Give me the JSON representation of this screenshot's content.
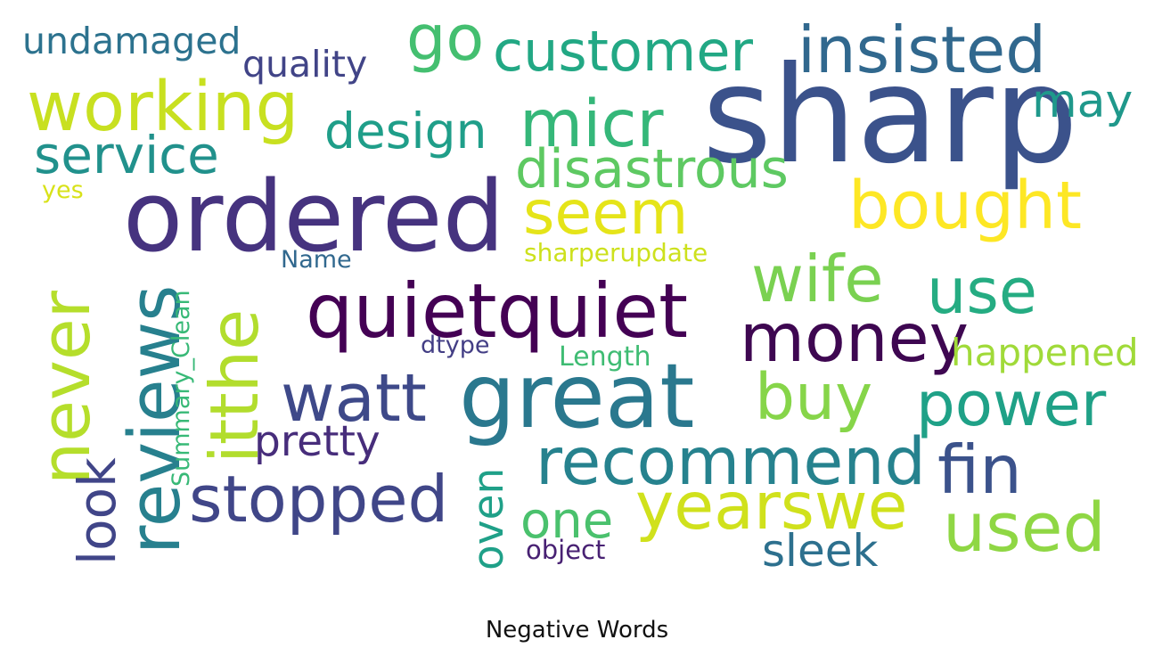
{
  "title": "Negative Words",
  "words": [
    {
      "text": "sharp",
      "color": "#3b528b",
      "orientation": "horizontal"
    },
    {
      "text": "ordered",
      "color": "#46337f",
      "orientation": "horizontal"
    },
    {
      "text": "great",
      "color": "#2a788e",
      "orientation": "horizontal"
    },
    {
      "text": "quietquiet",
      "color": "#440154",
      "orientation": "horizontal"
    },
    {
      "text": "working",
      "color": "#c8e020",
      "orientation": "horizontal"
    },
    {
      "text": "insisted",
      "color": "#31688e",
      "orientation": "horizontal"
    },
    {
      "text": "customer",
      "color": "#22a884",
      "orientation": "horizontal"
    },
    {
      "text": "micr",
      "color": "#35b779",
      "orientation": "horizontal"
    },
    {
      "text": "go",
      "color": "#44bf70",
      "orientation": "horizontal"
    },
    {
      "text": "bought",
      "color": "#fde725",
      "orientation": "horizontal"
    },
    {
      "text": "seem",
      "color": "#e5e419",
      "orientation": "horizontal"
    },
    {
      "text": "disastrous",
      "color": "#5ec962",
      "orientation": "horizontal"
    },
    {
      "text": "design",
      "color": "#1f9e89",
      "orientation": "horizontal"
    },
    {
      "text": "service",
      "color": "#21918c",
      "orientation": "horizontal"
    },
    {
      "text": "undamaged",
      "color": "#2c728e",
      "orientation": "horizontal"
    },
    {
      "text": "quality",
      "color": "#414487",
      "orientation": "horizontal"
    },
    {
      "text": "may",
      "color": "#1f988b",
      "orientation": "horizontal"
    },
    {
      "text": "yes",
      "color": "#d8e219",
      "orientation": "horizontal"
    },
    {
      "text": "money",
      "color": "#3e0751",
      "orientation": "horizontal"
    },
    {
      "text": "wife",
      "color": "#7ad151",
      "orientation": "horizontal"
    },
    {
      "text": "use",
      "color": "#25ac82",
      "orientation": "horizontal"
    },
    {
      "text": "happened",
      "color": "#a0da39",
      "orientation": "horizontal"
    },
    {
      "text": "power",
      "color": "#1fa187",
      "orientation": "horizontal"
    },
    {
      "text": "fin",
      "color": "#3b528b",
      "orientation": "horizontal"
    },
    {
      "text": "buy",
      "color": "#86d549",
      "orientation": "horizontal"
    },
    {
      "text": "recommend",
      "color": "#26828e",
      "orientation": "horizontal"
    },
    {
      "text": "yearswe",
      "color": "#d0e11c",
      "orientation": "horizontal"
    },
    {
      "text": "used",
      "color": "#8fd744",
      "orientation": "horizontal"
    },
    {
      "text": "sleek",
      "color": "#2d708e",
      "orientation": "horizontal"
    },
    {
      "text": "one",
      "color": "#4ac16d",
      "orientation": "horizontal"
    },
    {
      "text": "object",
      "color": "#482173",
      "orientation": "horizontal"
    },
    {
      "text": "watt",
      "color": "#3e4989",
      "orientation": "horizontal"
    },
    {
      "text": "stopped",
      "color": "#404688",
      "orientation": "horizontal"
    },
    {
      "text": "pretty",
      "color": "#472d7b",
      "orientation": "horizontal"
    },
    {
      "text": "Name",
      "color": "#31688e",
      "orientation": "horizontal"
    },
    {
      "text": "sharperupdate",
      "color": "#cde11d",
      "orientation": "horizontal"
    },
    {
      "text": "dtype",
      "color": "#433e85",
      "orientation": "horizontal"
    },
    {
      "text": "Length",
      "color": "#3fbc73",
      "orientation": "horizontal"
    },
    {
      "text": "never",
      "color": "#b5de2b",
      "orientation": "vertical"
    },
    {
      "text": "reviews",
      "color": "#27808e",
      "orientation": "vertical"
    },
    {
      "text": "itthe",
      "color": "#b2dd2d",
      "orientation": "vertical"
    },
    {
      "text": "look",
      "color": "#404588",
      "orientation": "vertical"
    },
    {
      "text": "Summary_Clean",
      "color": "#38b977",
      "orientation": "vertical"
    },
    {
      "text": "oven",
      "color": "#1fa088",
      "orientation": "vertical"
    }
  ]
}
